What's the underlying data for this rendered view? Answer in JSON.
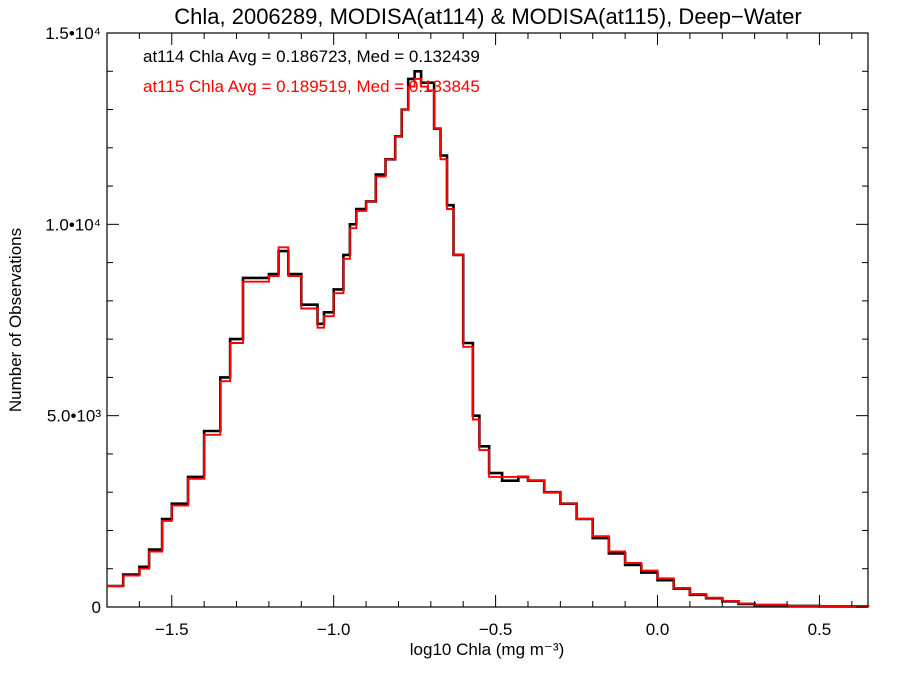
{
  "chart_data": {
    "type": "line",
    "title": "Chla, 2006289, MODISA(at114) & MODISA(at115), Deep−Water",
    "xlabel": "log10 Chla (mg m⁻³)",
    "ylabel": "Number of Observations",
    "xlim": [
      -1.7,
      0.65
    ],
    "ylim": [
      0,
      15000
    ],
    "step": true,
    "grid": false,
    "x_ticks": [
      -1.5,
      -1.0,
      -0.5,
      0.0,
      0.5
    ],
    "x_tick_labels": [
      "−1.5",
      "−1.0",
      "−0.5",
      "0.0",
      "0.5"
    ],
    "y_ticks": [
      0,
      5000,
      10000,
      15000
    ],
    "y_tick_labels": [
      "0",
      "5.0•10³",
      "1.0•10⁴",
      "1.5•10⁴"
    ],
    "annotations": [
      {
        "text": "at114 Chla Avg = 0.186723, Med = 0.132439",
        "color": "#000000"
      },
      {
        "text": "at115 Chla Avg = 0.189519, Med = 0.133845",
        "color": "#ff0000"
      }
    ],
    "series": [
      {
        "name": "at114",
        "color": "#000000",
        "points": [
          [
            -1.7,
            550
          ],
          [
            -1.65,
            850
          ],
          [
            -1.6,
            1050
          ],
          [
            -1.57,
            1500
          ],
          [
            -1.53,
            2300
          ],
          [
            -1.5,
            2700
          ],
          [
            -1.45,
            3400
          ],
          [
            -1.4,
            4600
          ],
          [
            -1.35,
            6000
          ],
          [
            -1.32,
            7000
          ],
          [
            -1.28,
            8600
          ],
          [
            -1.25,
            8600
          ],
          [
            -1.2,
            8700
          ],
          [
            -1.17,
            9300
          ],
          [
            -1.14,
            8700
          ],
          [
            -1.1,
            7900
          ],
          [
            -1.05,
            7400
          ],
          [
            -1.03,
            7700
          ],
          [
            -1.0,
            8300
          ],
          [
            -0.97,
            9200
          ],
          [
            -0.95,
            10000
          ],
          [
            -0.93,
            10400
          ],
          [
            -0.9,
            10600
          ],
          [
            -0.87,
            11300
          ],
          [
            -0.84,
            11700
          ],
          [
            -0.81,
            12300
          ],
          [
            -0.79,
            13000
          ],
          [
            -0.77,
            13800
          ],
          [
            -0.75,
            14000
          ],
          [
            -0.73,
            13700
          ],
          [
            -0.71,
            13700
          ],
          [
            -0.69,
            12500
          ],
          [
            -0.67,
            11800
          ],
          [
            -0.65,
            10500
          ],
          [
            -0.63,
            9200
          ],
          [
            -0.6,
            6900
          ],
          [
            -0.57,
            5000
          ],
          [
            -0.55,
            4200
          ],
          [
            -0.52,
            3500
          ],
          [
            -0.48,
            3300
          ],
          [
            -0.43,
            3400
          ],
          [
            -0.4,
            3300
          ],
          [
            -0.35,
            3000
          ],
          [
            -0.3,
            2700
          ],
          [
            -0.25,
            2300
          ],
          [
            -0.2,
            1800
          ],
          [
            -0.15,
            1400
          ],
          [
            -0.1,
            1100
          ],
          [
            -0.05,
            900
          ],
          [
            0.0,
            700
          ],
          [
            0.05,
            480
          ],
          [
            0.1,
            320
          ],
          [
            0.15,
            230
          ],
          [
            0.2,
            150
          ],
          [
            0.25,
            80
          ],
          [
            0.3,
            50
          ],
          [
            0.4,
            30
          ],
          [
            0.5,
            15
          ],
          [
            0.65,
            0
          ]
        ]
      },
      {
        "name": "at115",
        "color": "#ff0000",
        "points": [
          [
            -1.7,
            550
          ],
          [
            -1.65,
            820
          ],
          [
            -1.6,
            1000
          ],
          [
            -1.57,
            1450
          ],
          [
            -1.53,
            2250
          ],
          [
            -1.5,
            2650
          ],
          [
            -1.45,
            3350
          ],
          [
            -1.4,
            4500
          ],
          [
            -1.35,
            5900
          ],
          [
            -1.32,
            6900
          ],
          [
            -1.28,
            8500
          ],
          [
            -1.25,
            8500
          ],
          [
            -1.2,
            8650
          ],
          [
            -1.17,
            9400
          ],
          [
            -1.14,
            8650
          ],
          [
            -1.1,
            7800
          ],
          [
            -1.05,
            7300
          ],
          [
            -1.03,
            7600
          ],
          [
            -1.0,
            8200
          ],
          [
            -0.97,
            9100
          ],
          [
            -0.95,
            9900
          ],
          [
            -0.93,
            10350
          ],
          [
            -0.9,
            10600
          ],
          [
            -0.87,
            11250
          ],
          [
            -0.84,
            11700
          ],
          [
            -0.81,
            12300
          ],
          [
            -0.79,
            13000
          ],
          [
            -0.77,
            13600
          ],
          [
            -0.75,
            13800
          ],
          [
            -0.73,
            13600
          ],
          [
            -0.71,
            13500
          ],
          [
            -0.69,
            12500
          ],
          [
            -0.67,
            11700
          ],
          [
            -0.65,
            10400
          ],
          [
            -0.63,
            9200
          ],
          [
            -0.6,
            6800
          ],
          [
            -0.57,
            4900
          ],
          [
            -0.55,
            4100
          ],
          [
            -0.52,
            3400
          ],
          [
            -0.48,
            3400
          ],
          [
            -0.43,
            3400
          ],
          [
            -0.4,
            3300
          ],
          [
            -0.35,
            3000
          ],
          [
            -0.3,
            2700
          ],
          [
            -0.25,
            2300
          ],
          [
            -0.2,
            1850
          ],
          [
            -0.15,
            1450
          ],
          [
            -0.1,
            1150
          ],
          [
            -0.05,
            950
          ],
          [
            0.0,
            750
          ],
          [
            0.05,
            500
          ],
          [
            0.1,
            340
          ],
          [
            0.15,
            240
          ],
          [
            0.2,
            160
          ],
          [
            0.25,
            90
          ],
          [
            0.3,
            55
          ],
          [
            0.4,
            30
          ],
          [
            0.5,
            15
          ],
          [
            0.65,
            0
          ]
        ]
      }
    ]
  }
}
